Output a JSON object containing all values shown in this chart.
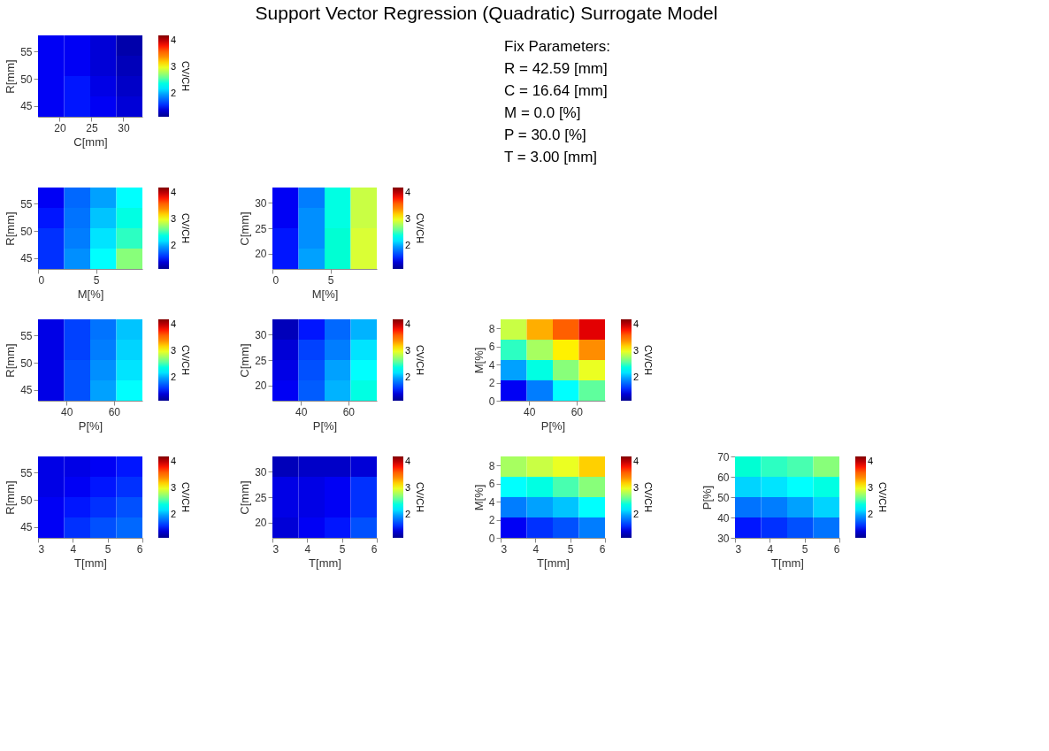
{
  "chart_data": [
    {
      "type": "heatmap",
      "xlabel": "C[mm]",
      "ylabel": "R[mm]",
      "clabel": "CV/CH",
      "x": [
        18.65,
        22.75,
        26.85,
        30.95
      ],
      "y": [
        56.125,
        52.375,
        48.625,
        44.875
      ],
      "xlim": [
        16.6,
        33
      ],
      "xticks": [
        20,
        25,
        30
      ],
      "ylim": [
        43,
        58
      ],
      "yticks": [
        45,
        50,
        55
      ],
      "clim": [
        1.15,
        4.2
      ],
      "cticks": [
        2,
        3,
        4
      ],
      "cells": [
        [
          1.5,
          1.5,
          1.4,
          1.25
        ],
        [
          1.5,
          1.5,
          1.4,
          1.3
        ],
        [
          1.5,
          1.55,
          1.45,
          1.35
        ],
        [
          1.5,
          1.55,
          1.5,
          1.4
        ]
      ]
    },
    {
      "type": "other",
      "title": "Support Vector Regression (Quadratic) Surrogate Model",
      "annotations": [
        "Fix Parameters:",
        "R = 42.59 [mm]",
        "C = 16.64 [mm]",
        "M = 0.0 [%]",
        "P = 30.0 [%]",
        "T = 3.00 [mm]"
      ]
    },
    {
      "type": "heatmap",
      "xlabel": "M[%]",
      "ylabel": "R[mm]",
      "clabel": "CV/CH",
      "x": [
        1.125,
        3.375,
        5.625,
        7.875
      ],
      "y": [
        56.125,
        52.375,
        48.625,
        44.875
      ],
      "xlim": [
        0,
        9
      ],
      "xticks": [
        0,
        5
      ],
      "ylim": [
        43,
        58
      ],
      "yticks": [
        45,
        50,
        55
      ],
      "clim": [
        1.15,
        4.2
      ],
      "cticks": [
        2,
        3,
        4
      ],
      "cells": [
        [
          1.5,
          1.8,
          2.0,
          2.3
        ],
        [
          1.55,
          1.85,
          2.1,
          2.4
        ],
        [
          1.6,
          1.9,
          2.2,
          2.5
        ],
        [
          1.6,
          1.95,
          2.3,
          2.7
        ]
      ]
    },
    {
      "type": "heatmap",
      "xlabel": "M[%]",
      "ylabel": "C[mm]",
      "clabel": "CV/CH",
      "x": [
        1.125,
        3.375,
        5.625,
        7.875
      ],
      "y": [
        31,
        27,
        23,
        19
      ],
      "xlim": [
        0,
        9
      ],
      "xticks": [
        0,
        5
      ],
      "ylim": [
        17,
        33
      ],
      "yticks": [
        20,
        25,
        30
      ],
      "clim": [
        1.15,
        4.2
      ],
      "cticks": [
        2,
        3,
        4
      ],
      "cells": [
        [
          1.5,
          1.9,
          2.4,
          2.9
        ],
        [
          1.5,
          1.95,
          2.4,
          2.9
        ],
        [
          1.55,
          1.95,
          2.45,
          2.95
        ],
        [
          1.55,
          2.0,
          2.45,
          2.95
        ]
      ]
    },
    {
      "type": "heatmap",
      "xlabel": "P[%]",
      "ylabel": "R[mm]",
      "clabel": "CV/CH",
      "x": [
        33.5,
        44.5,
        55.5,
        66.5
      ],
      "y": [
        56.125,
        52.375,
        48.625,
        44.875
      ],
      "xlim": [
        28,
        72
      ],
      "xticks": [
        40,
        60
      ],
      "ylim": [
        43,
        58
      ],
      "yticks": [
        45,
        50,
        55
      ],
      "clim": [
        1.15,
        4.2
      ],
      "cticks": [
        2,
        3,
        4
      ],
      "cells": [
        [
          1.45,
          1.65,
          1.85,
          2.1
        ],
        [
          1.45,
          1.65,
          1.9,
          2.15
        ],
        [
          1.45,
          1.7,
          1.95,
          2.2
        ],
        [
          1.45,
          1.7,
          2.0,
          2.3
        ]
      ]
    },
    {
      "type": "heatmap",
      "xlabel": "P[%]",
      "ylabel": "C[mm]",
      "clabel": "CV/CH",
      "x": [
        33.5,
        44.5,
        55.5,
        66.5
      ],
      "y": [
        31,
        27,
        23,
        19
      ],
      "xlim": [
        28,
        72
      ],
      "xticks": [
        40,
        60
      ],
      "ylim": [
        17,
        33
      ],
      "yticks": [
        20,
        25,
        30
      ],
      "clim": [
        1.15,
        4.2
      ],
      "cticks": [
        2,
        3,
        4
      ],
      "cells": [
        [
          1.3,
          1.55,
          1.8,
          2.05
        ],
        [
          1.4,
          1.65,
          1.9,
          2.2
        ],
        [
          1.45,
          1.7,
          2.0,
          2.3
        ],
        [
          1.5,
          1.75,
          2.05,
          2.4
        ]
      ]
    },
    {
      "type": "heatmap",
      "xlabel": "P[%]",
      "ylabel": "M[%]",
      "clabel": "CV/CH",
      "x": [
        33.5,
        44.5,
        55.5,
        66.5
      ],
      "y": [
        7.875,
        5.625,
        3.375,
        1.125
      ],
      "xlim": [
        28,
        72
      ],
      "xticks": [
        40,
        60
      ],
      "ylim": [
        0,
        9
      ],
      "yticks": [
        0,
        2,
        4,
        6,
        8
      ],
      "clim": [
        1.15,
        4.2
      ],
      "cticks": [
        2,
        3,
        4
      ],
      "cells": [
        [
          2.9,
          3.3,
          3.6,
          3.9
        ],
        [
          2.5,
          2.8,
          3.1,
          3.4
        ],
        [
          2.0,
          2.4,
          2.7,
          3.0
        ],
        [
          1.5,
          1.9,
          2.3,
          2.6
        ]
      ]
    },
    {
      "type": "heatmap",
      "xlabel": "T[mm]",
      "ylabel": "R[mm]",
      "clabel": "CV/CH",
      "x": [
        3.375,
        4.125,
        4.875,
        5.625
      ],
      "y": [
        56.125,
        52.375,
        48.625,
        44.875
      ],
      "xlim": [
        3,
        6
      ],
      "xticks": [
        3,
        4,
        5,
        6
      ],
      "ylim": [
        43,
        58
      ],
      "yticks": [
        45,
        50,
        55
      ],
      "clim": [
        1.15,
        4.2
      ],
      "cticks": [
        2,
        3,
        4
      ],
      "cells": [
        [
          1.45,
          1.45,
          1.5,
          1.55
        ],
        [
          1.45,
          1.5,
          1.55,
          1.6
        ],
        [
          1.5,
          1.55,
          1.6,
          1.7
        ],
        [
          1.5,
          1.6,
          1.7,
          1.8
        ]
      ]
    },
    {
      "type": "heatmap",
      "xlabel": "T[mm]",
      "ylabel": "C[mm]",
      "clabel": "CV/CH",
      "x": [
        3.375,
        4.125,
        4.875,
        5.625
      ],
      "y": [
        31,
        27,
        23,
        19
      ],
      "xlim": [
        3,
        6
      ],
      "xticks": [
        3,
        4,
        5,
        6
      ],
      "ylim": [
        17,
        33
      ],
      "yticks": [
        20,
        25,
        30
      ],
      "clim": [
        1.15,
        4.2
      ],
      "cticks": [
        2,
        3,
        4
      ],
      "cells": [
        [
          1.3,
          1.35,
          1.35,
          1.4
        ],
        [
          1.45,
          1.45,
          1.5,
          1.6
        ],
        [
          1.45,
          1.45,
          1.5,
          1.6
        ],
        [
          1.4,
          1.5,
          1.55,
          1.7
        ]
      ]
    },
    {
      "type": "heatmap",
      "xlabel": "T[mm]",
      "ylabel": "M[%]",
      "clabel": "CV/CH",
      "x": [
        3.375,
        4.125,
        4.875,
        5.625
      ],
      "y": [
        7.875,
        5.625,
        3.375,
        1.125
      ],
      "xlim": [
        3,
        6
      ],
      "xticks": [
        3,
        4,
        5,
        6
      ],
      "ylim": [
        0,
        9
      ],
      "yticks": [
        0,
        2,
        4,
        6,
        8
      ],
      "clim": [
        1.15,
        4.2
      ],
      "cticks": [
        2,
        3,
        4
      ],
      "cells": [
        [
          2.8,
          2.9,
          3.0,
          3.2
        ],
        [
          2.3,
          2.4,
          2.55,
          2.7
        ],
        [
          1.9,
          2.0,
          2.1,
          2.3
        ],
        [
          1.5,
          1.6,
          1.7,
          1.9
        ]
      ]
    },
    {
      "type": "heatmap",
      "xlabel": "T[mm]",
      "ylabel": "P[%]",
      "clabel": "CV/CH",
      "x": [
        3.375,
        4.125,
        4.875,
        5.625
      ],
      "y": [
        65,
        55,
        45,
        35
      ],
      "xlim": [
        3,
        6
      ],
      "xticks": [
        3,
        4,
        5,
        6
      ],
      "ylim": [
        30,
        70
      ],
      "yticks": [
        30,
        40,
        50,
        60,
        70
      ],
      "clim": [
        1.15,
        4.2
      ],
      "cticks": [
        2,
        3,
        4
      ],
      "cells": [
        [
          2.45,
          2.5,
          2.55,
          2.7
        ],
        [
          2.15,
          2.2,
          2.3,
          2.4
        ],
        [
          1.85,
          1.9,
          2.0,
          2.15
        ],
        [
          1.55,
          1.6,
          1.7,
          1.85
        ]
      ]
    }
  ]
}
